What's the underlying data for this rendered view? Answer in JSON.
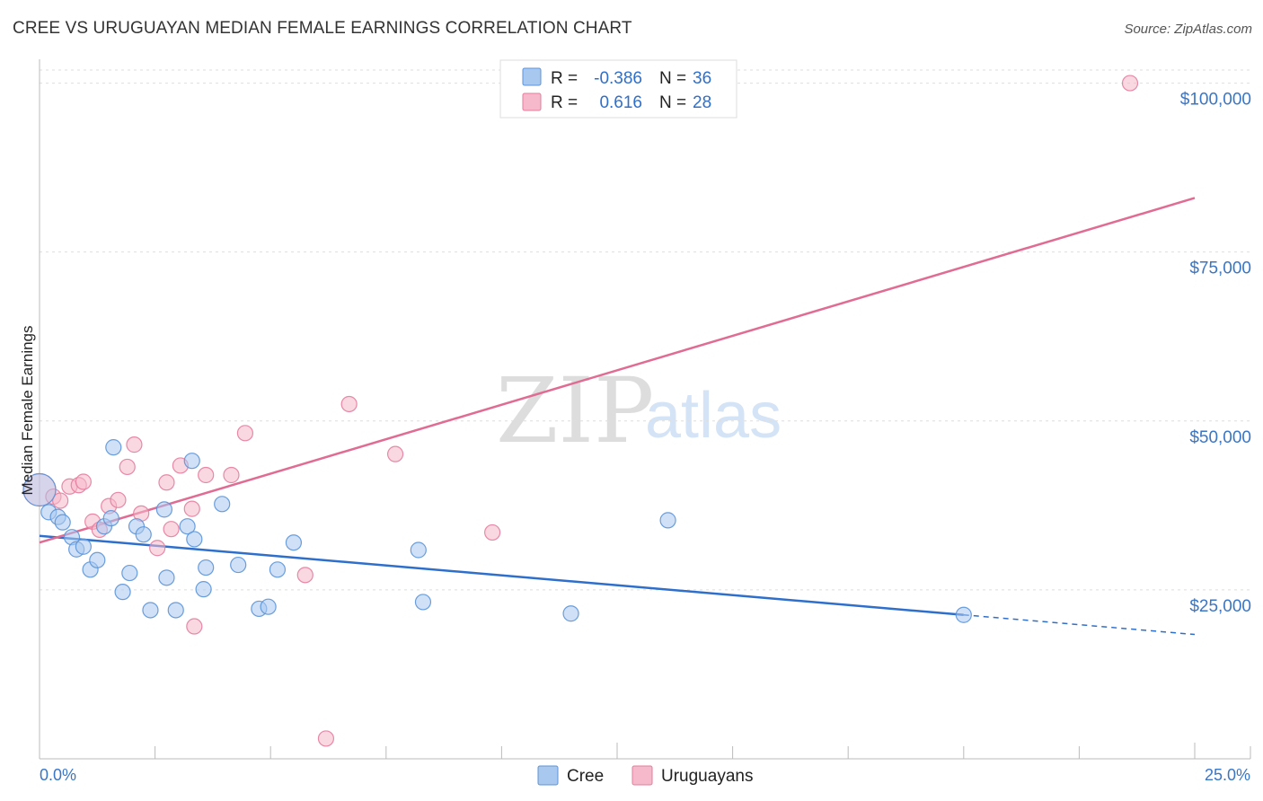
{
  "title": "CREE VS URUGUAYAN MEDIAN FEMALE EARNINGS CORRELATION CHART",
  "source": "Source: ZipAtlas.com",
  "watermark": {
    "zip": "ZIP",
    "atlas": "atlas"
  },
  "colors": {
    "cree": "#a9c8f0",
    "cree_stroke": "#5b93d8",
    "cree_line": "#2f6fcc",
    "uruguayans": "#f6b8cb",
    "uruguayans_stroke": "#e47d9e",
    "uruguayans_line": "#e06c94",
    "axis_text": "#3a76c6"
  },
  "legend": {
    "rows": [
      {
        "r_label": "R =",
        "r_value": "-0.386",
        "n_label": "N =",
        "n_value": "36"
      },
      {
        "r_label": "R =",
        "r_value": "0.616",
        "n_label": "N =",
        "n_value": "28"
      }
    ]
  },
  "bottom_legend": {
    "cree": "Cree",
    "uruguayans": "Uruguayans"
  },
  "chart_data": {
    "type": "scatter",
    "title": "CREE VS URUGUAYAN MEDIAN FEMALE EARNINGS CORRELATION CHART",
    "xlabel": "",
    "ylabel": "Median Female Earnings",
    "xlim": [
      0,
      25
    ],
    "ylim": [
      0,
      103000
    ],
    "x_tick_labels": [
      "0.0%",
      "25.0%"
    ],
    "y_ticks": [
      25000,
      50000,
      75000,
      100000
    ],
    "y_tick_labels": [
      "$25,000",
      "$50,000",
      "$75,000",
      "$100,000"
    ],
    "series": [
      {
        "name": "Cree",
        "r": -0.386,
        "n": 36,
        "trend": {
          "x0": 0,
          "y0": 33000,
          "x1": 20,
          "y1": 21300,
          "dash_to_x": 25,
          "dash_to_y": 18400
        },
        "points": [
          [
            0.0,
            39800
          ],
          [
            0.2,
            36500
          ],
          [
            0.4,
            35800
          ],
          [
            0.5,
            35000
          ],
          [
            0.7,
            32800
          ],
          [
            0.8,
            31000
          ],
          [
            0.95,
            31400
          ],
          [
            1.1,
            28000
          ],
          [
            1.25,
            29400
          ],
          [
            1.4,
            34400
          ],
          [
            1.55,
            35600
          ],
          [
            1.6,
            46100
          ],
          [
            1.8,
            24700
          ],
          [
            1.95,
            27500
          ],
          [
            2.1,
            34400
          ],
          [
            2.25,
            33200
          ],
          [
            2.4,
            22000
          ],
          [
            2.7,
            36900
          ],
          [
            2.75,
            26800
          ],
          [
            2.95,
            22000
          ],
          [
            3.2,
            34400
          ],
          [
            3.3,
            44100
          ],
          [
            3.35,
            32500
          ],
          [
            3.55,
            25100
          ],
          [
            3.6,
            28300
          ],
          [
            3.95,
            37700
          ],
          [
            4.3,
            28700
          ],
          [
            4.75,
            22200
          ],
          [
            4.95,
            22500
          ],
          [
            5.15,
            28000
          ],
          [
            5.5,
            32000
          ],
          [
            8.2,
            30900
          ],
          [
            8.3,
            23200
          ],
          [
            11.5,
            21500
          ],
          [
            13.6,
            35300
          ],
          [
            20.0,
            21300
          ]
        ]
      },
      {
        "name": "Uruguayans",
        "r": 0.616,
        "n": 28,
        "trend": {
          "x0": 0,
          "y0": 32000,
          "x1": 25,
          "y1": 83000
        },
        "points": [
          [
            0.0,
            39800
          ],
          [
            0.3,
            38800
          ],
          [
            0.45,
            38200
          ],
          [
            0.65,
            40300
          ],
          [
            0.85,
            40500
          ],
          [
            0.95,
            41000
          ],
          [
            1.15,
            35100
          ],
          [
            1.3,
            33900
          ],
          [
            1.5,
            37400
          ],
          [
            1.7,
            38300
          ],
          [
            1.9,
            43200
          ],
          [
            2.05,
            46500
          ],
          [
            2.2,
            36300
          ],
          [
            2.55,
            31200
          ],
          [
            2.75,
            40900
          ],
          [
            2.85,
            34000
          ],
          [
            3.05,
            43400
          ],
          [
            3.3,
            37000
          ],
          [
            3.35,
            19600
          ],
          [
            3.6,
            42000
          ],
          [
            4.15,
            42000
          ],
          [
            4.45,
            48200
          ],
          [
            5.75,
            27200
          ],
          [
            6.2,
            3000
          ],
          [
            6.7,
            52500
          ],
          [
            7.7,
            45100
          ],
          [
            9.8,
            33500
          ],
          [
            23.6,
            100000
          ]
        ]
      }
    ]
  }
}
